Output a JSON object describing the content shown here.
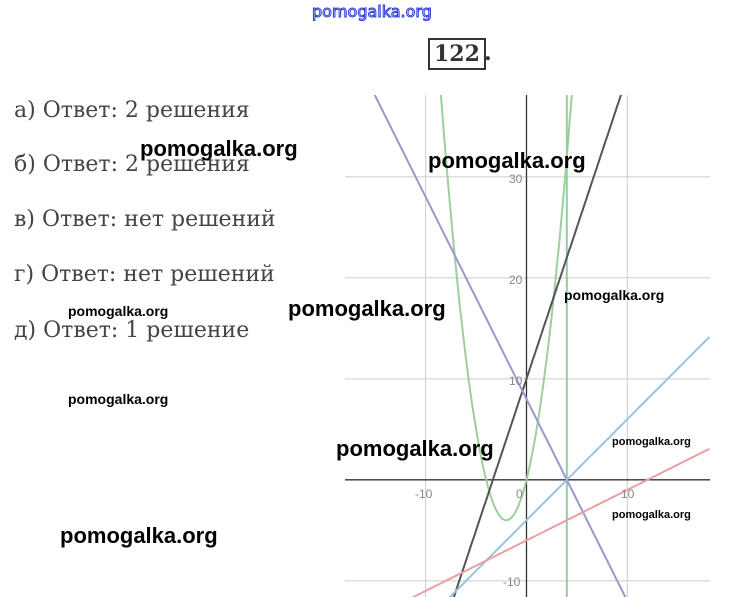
{
  "header": {
    "watermark": "pomogalka.org",
    "problem_number": "122",
    "problem_number_dot": "."
  },
  "answers": [
    "а) Ответ: 2 решения",
    "б) Ответ: 2 решения",
    "в) Ответ: нет решений",
    "г) Ответ: нет решений",
    "д) Ответ: 1 решение"
  ],
  "watermarks": [
    "pomogalka.org",
    "pomogalka.org",
    "pomogalka.org",
    "pomogalka.org",
    "pomogalka.org",
    "pomogalka.org",
    "pomogalka.org",
    "pomogalka.org",
    "pomogalka.org"
  ],
  "chart_data": {
    "type": "line",
    "xlim": [
      -18,
      18.2
    ],
    "ylim": [
      -11.6,
      38.1
    ],
    "grid": true,
    "x_ticks": [
      "-10",
      "0",
      "10"
    ],
    "y_ticks": [
      "30",
      "20",
      "10",
      "-10"
    ],
    "series": [
      {
        "kind": "parabola",
        "a": 1,
        "b": 4,
        "c": 0,
        "color": "#9ccf9c"
      },
      {
        "kind": "vertical",
        "x": 4,
        "color": "#8fcfa0"
      },
      {
        "kind": "line",
        "slope": 3,
        "intercept": 10,
        "color": "#555555"
      },
      {
        "kind": "line",
        "slope": -2,
        "intercept": 8,
        "color": "#9a98cc"
      },
      {
        "kind": "line",
        "slope": 1,
        "intercept": -4,
        "color": "#9cc2e0"
      },
      {
        "kind": "line",
        "slope": 0.5,
        "intercept": -6,
        "color": "#eaa0a0"
      }
    ]
  }
}
